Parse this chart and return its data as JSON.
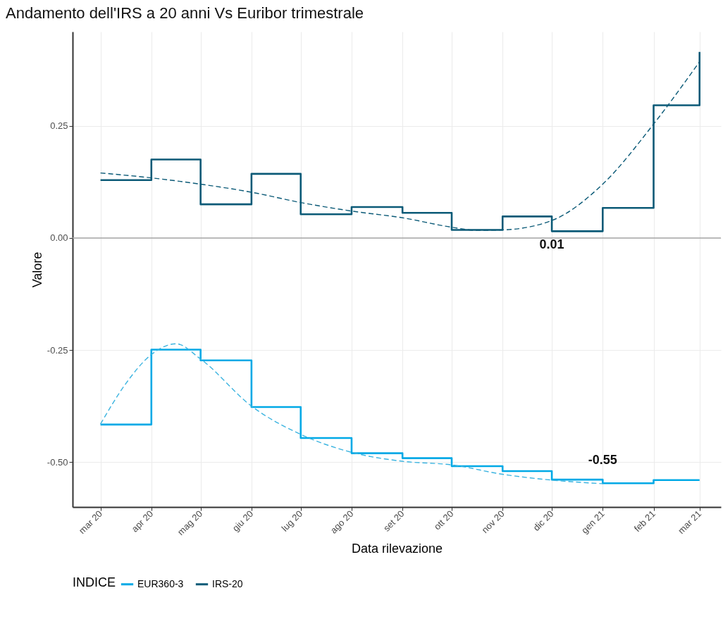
{
  "chart_data": {
    "type": "step",
    "title": "Andamento dell'IRS a 20 anni Vs Euribor trimestrale",
    "xlabel": "Data rilevazione",
    "ylabel": "Valore",
    "legend_title": "INDICE",
    "x": [
      "2020-03",
      "2020-04",
      "2020-05",
      "2020-06",
      "2020-07",
      "2020-08",
      "2020-09",
      "2020-10",
      "2020-11",
      "2020-12",
      "2021-01",
      "2021-02",
      "2021-03"
    ],
    "series": [
      {
        "name": "EUR360-3",
        "color": "#00a9e6",
        "values": [
          -0.416,
          -0.249,
          -0.273,
          -0.377,
          -0.446,
          -0.48,
          -0.491,
          -0.509,
          -0.52,
          -0.539,
          -0.547,
          -0.54,
          -0.54
        ]
      },
      {
        "name": "IRS-20",
        "color": "#0b5a77",
        "values": [
          0.129,
          0.175,
          0.075,
          0.143,
          0.053,
          0.069,
          0.056,
          0.018,
          0.048,
          0.015,
          0.067,
          0.296,
          0.415
        ]
      },
      {
        "type": "line",
        "line_style": "dashed",
        "color": "#0b5a77",
        "x": [
          "2020-03",
          "2020-04",
          "2020-05",
          "2020-06",
          "2020-07",
          "2020-08",
          "2020-09",
          "2020-10",
          "2020-10-16",
          "2020-11",
          "2020-12",
          "2021-01",
          "2021-02",
          "2021-03"
        ],
        "values": [
          0.145,
          0.134,
          0.12,
          0.102,
          0.079,
          0.06,
          0.045,
          0.024,
          0.017,
          0.018,
          0.039,
          0.12,
          0.254,
          0.393
        ]
      },
      {
        "type": "line",
        "line_style": "dashed",
        "color": "#3cb4e0",
        "x": [
          "2020-03",
          "2020-03-16",
          "2020-04",
          "2020-04-16",
          "2020-05",
          "2020-06",
          "2020-07",
          "2020-08",
          "2020-09",
          "2020-10",
          "2020-11",
          "2020-12",
          "2021-01"
        ],
        "values": [
          -0.415,
          -0.327,
          -0.26,
          -0.236,
          -0.27,
          -0.375,
          -0.438,
          -0.478,
          -0.498,
          -0.506,
          -0.527,
          -0.54,
          -0.548
        ]
      }
    ],
    "annotations": [
      {
        "text": "0.01",
        "x": "2020-12",
        "y": 0.015
      },
      {
        "text": "-0.55",
        "x": "2021-01",
        "y": -0.547
      }
    ],
    "ref_lines": [
      {
        "axis": "y",
        "value": 0,
        "color": "#a6a6a6"
      }
    ],
    "xlim": [
      "2020-02-13",
      "2021-03-14"
    ],
    "xticks": [
      {
        "value": "2020-03",
        "label": "mar 20"
      },
      {
        "value": "2020-04",
        "label": "apr 20"
      },
      {
        "value": "2020-05",
        "label": "mag 20"
      },
      {
        "value": "2020-06",
        "label": "giu 20"
      },
      {
        "value": "2020-07",
        "label": "lug 20"
      },
      {
        "value": "2020-08",
        "label": "ago 20"
      },
      {
        "value": "2020-09",
        "label": "set 20"
      },
      {
        "value": "2020-10",
        "label": "ott 20"
      },
      {
        "value": "2020-11",
        "label": "nov 20"
      },
      {
        "value": "2020-12",
        "label": "dic 20"
      },
      {
        "value": "2021-01",
        "label": "gen 21"
      },
      {
        "value": "2021-02",
        "label": "feb 21"
      },
      {
        "value": "2021-03",
        "label": "mar 21"
      }
    ],
    "ylim": [
      -0.6,
      0.46
    ],
    "yticks": [
      {
        "value": -0.5,
        "label": "-0.50"
      },
      {
        "value": -0.25,
        "label": "-0.25"
      },
      {
        "value": 0,
        "label": "0.00"
      },
      {
        "value": 0.25,
        "label": "0.25"
      }
    ],
    "grid": true,
    "legend": "bottom"
  }
}
